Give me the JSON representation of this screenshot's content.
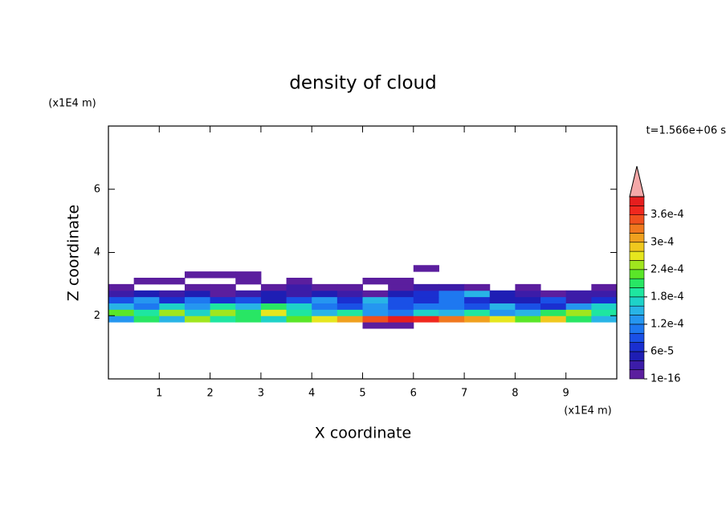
{
  "chart_data": {
    "type": "contour",
    "title": "density of cloud",
    "x_label": "X coordinate",
    "y_label": "Z coordinate",
    "x_unit": "(x1E4 m)",
    "y_unit": "(x1E4 m)",
    "annotation": "t=1.566e+06 s",
    "xlim": [
      0,
      10
    ],
    "ylim": [
      0,
      8
    ],
    "xticks": [
      1,
      2,
      3,
      4,
      5,
      6,
      7,
      8,
      9
    ],
    "yticks": [
      2,
      4,
      6
    ],
    "x": [
      0.25,
      0.75,
      1.25,
      1.75,
      2.25,
      2.75,
      3.25,
      3.75,
      4.25,
      4.75,
      5.25,
      5.75,
      6.25,
      6.75,
      7.25,
      7.75,
      8.25,
      8.75,
      9.25,
      9.75
    ],
    "y": [
      1.7,
      1.9,
      2.1,
      2.3,
      2.5,
      2.7,
      2.9,
      3.1,
      3.3,
      3.5
    ],
    "values": [
      [
        null,
        null,
        null,
        null,
        null,
        null,
        null,
        null,
        null,
        null,
        1e-05,
        1e-05,
        null,
        null,
        null,
        null,
        null,
        null,
        null,
        null
      ],
      [
        0.00012,
        0.0002,
        0.00015,
        0.00024,
        0.00018,
        0.0002,
        0.00016,
        0.00022,
        0.00026,
        0.0003,
        0.00034,
        0.00039,
        0.00036,
        0.00032,
        0.0003,
        0.00026,
        0.00022,
        0.00028,
        0.0002,
        0.00014
      ],
      [
        0.00022,
        0.00018,
        0.00025,
        0.00016,
        0.00024,
        0.0002,
        0.00026,
        0.00019,
        0.00014,
        0.00018,
        0.00012,
        0.0001,
        0.00016,
        0.00014,
        0.00018,
        0.00012,
        0.00015,
        0.0002,
        0.00024,
        0.00018
      ],
      [
        0.00014,
        0.0001,
        0.00016,
        0.00012,
        0.00018,
        0.00014,
        0.0002,
        0.00016,
        0.0001,
        8e-05,
        0.00012,
        9e-05,
        0.00011,
        0.0001,
        8e-05,
        0.00014,
        9e-05,
        6e-05,
        0.00012,
        0.00016
      ],
      [
        8e-05,
        0.00012,
        6e-05,
        0.0001,
        7e-05,
        9e-05,
        5e-05,
        8e-05,
        0.00012,
        6e-05,
        0.00014,
        8e-05,
        6e-05,
        0.0001,
        7e-05,
        5e-05,
        4e-05,
        8e-05,
        3e-05,
        6e-05
      ],
      [
        3e-05,
        5e-05,
        2e-05,
        4e-05,
        1e-05,
        3e-05,
        5e-05,
        2e-05,
        4e-05,
        3e-05,
        1e-05,
        4e-05,
        6e-05,
        0.0001,
        0.00014,
        5e-05,
        3e-05,
        1e-05,
        2e-05,
        3e-05
      ],
      [
        1e-05,
        null,
        null,
        1e-05,
        1e-05,
        null,
        1e-05,
        2e-05,
        1e-05,
        1e-05,
        null,
        1e-05,
        2e-05,
        3e-05,
        1e-05,
        null,
        1e-05,
        null,
        null,
        1e-05
      ],
      [
        null,
        1e-05,
        1e-05,
        null,
        null,
        1e-05,
        null,
        1e-05,
        null,
        null,
        1e-05,
        1e-05,
        null,
        null,
        null,
        null,
        null,
        null,
        null,
        null
      ],
      [
        null,
        null,
        null,
        1e-05,
        1e-05,
        1e-05,
        null,
        null,
        null,
        null,
        null,
        null,
        null,
        null,
        null,
        null,
        null,
        null,
        null,
        null
      ],
      [
        null,
        null,
        null,
        null,
        null,
        null,
        null,
        null,
        null,
        null,
        null,
        null,
        1e-05,
        null,
        null,
        null,
        null,
        null,
        null,
        null
      ]
    ],
    "levels": [
      1e-16,
      2e-05,
      4e-05,
      6e-05,
      8e-05,
      0.0001,
      0.00012,
      0.00014,
      0.00016,
      0.00018,
      0.0002,
      0.00022,
      0.00024,
      0.00026,
      0.00028,
      0.0003,
      0.00032,
      0.00034,
      0.00036,
      0.00038,
      0.0004
    ],
    "colors": [
      "#5b1e9e",
      "#3c1ca8",
      "#1e1eb4",
      "#1a2fd0",
      "#1a50e6",
      "#1e78f0",
      "#2596f0",
      "#28b4e6",
      "#1ed2c8",
      "#1ee6a0",
      "#28e664",
      "#5ae628",
      "#a0e61e",
      "#e6e61e",
      "#f0c81e",
      "#f0a01e",
      "#f0781e",
      "#f0501e",
      "#f0281e",
      "#e61e1e"
    ],
    "extend_color": "#f4a8a8",
    "colorbar_ticks": [
      {
        "value": 1e-16,
        "label": "1e-16"
      },
      {
        "value": 6e-05,
        "label": "6e-5"
      },
      {
        "value": 0.00012,
        "label": "1.2e-4"
      },
      {
        "value": 0.00018,
        "label": "1.8e-4"
      },
      {
        "value": 0.00024,
        "label": "2.4e-4"
      },
      {
        "value": 0.0003,
        "label": "3e-4"
      },
      {
        "value": 0.00036,
        "label": "3.6e-4"
      }
    ]
  }
}
